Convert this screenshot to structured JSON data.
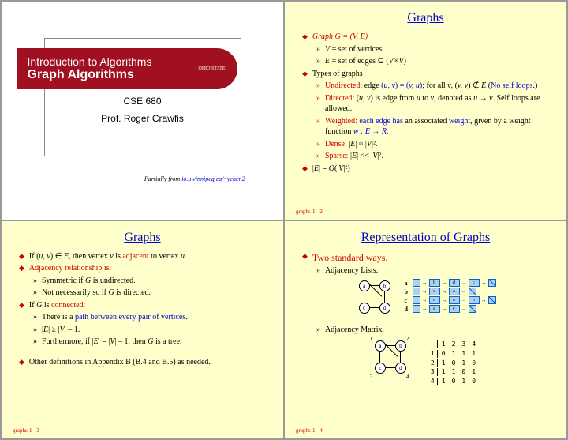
{
  "s1": {
    "banner_line1": "Introduction to Algorithms",
    "banner_line2": "Graph Algorithms",
    "logo_text": "OHIO STATE",
    "course": "CSE 680",
    "prof": "Prof. Roger Crawfis",
    "credit_prefix": "Partially from ",
    "credit_link": "io.uwinnipeg.ca/~ychen2"
  },
  "s2": {
    "title": "Graphs",
    "l1": "Graph G = (V, E)",
    "l2": "V = set of vertices",
    "l3a": "E = set of edges ",
    "l3b": "⊆ (V×V)",
    "l4": "Types of graphs",
    "l5a": "Undirected:",
    "l5b": " edge (",
    "l5c": "u, v",
    "l5d": ") = (",
    "l5e": "v, u",
    "l5f": "); for all ",
    "l5g": "v, (v, v) ∉ E",
    "l5h": " (No self loops.)",
    "l6a": "Directed:",
    "l6b": " (u, v) is edge from u to v, denoted as u → v. Self loops are allowed.",
    "l7a": "Weighted:",
    "l7b": " each edge has",
    "l7c": " an associated ",
    "l7d": "weight",
    "l7e": ", given by a weight function ",
    "l7f": "w : E → R.",
    "l8a": "Dense:",
    "l8b": " |E| ≈ |V|².",
    "l9a": "Sparse:",
    "l9b": " |E| << |V|².",
    "l10": "|E| = O(|V|²)",
    "footer": "graphs-1 - 2"
  },
  "s3": {
    "title": "Graphs",
    "l1a": "If (",
    "l1b": "u, v",
    "l1c": ") ∈ ",
    "l1d": "E",
    "l1e": ", then vertex ",
    "l1f": "v",
    "l1g": " is ",
    "l1h": "adjacent",
    "l1i": " to vertex ",
    "l1j": "u",
    "l1k": ".",
    "l2": "Adjacency relationship is:",
    "l3": "Symmetric if G is undirected.",
    "l4": "Not necessarily so if G is directed.",
    "l5a": "If ",
    "l5b": "G",
    "l5c": " is ",
    "l5d": "connected:",
    "l6": "There is a path between every pair of vertices.",
    "l7": "|E| ≥ |V| – 1.",
    "l8": "Furthermore, if |E| = |V| – 1, then G is a tree.",
    "l9": "Other definitions in Appendix B (B.4 and B.5) as needed.",
    "footer": "graphs-1 - 3"
  },
  "s4": {
    "title": "Representation of Graphs",
    "l1": "Two standard ways.",
    "l2": "Adjacency Lists.",
    "l3": "Adjacency Matrix.",
    "nodes": {
      "a": "a",
      "b": "b",
      "c": "c",
      "d": "d"
    },
    "list_rows": [
      {
        "label": "a",
        "cells": [
          "b",
          "d",
          "c"
        ]
      },
      {
        "label": "b",
        "cells": [
          "c",
          "a"
        ]
      },
      {
        "label": "c",
        "cells": [
          "d",
          "a",
          "b"
        ]
      },
      {
        "label": "d",
        "cells": [
          "a",
          "c"
        ]
      }
    ],
    "matrix_header": [
      "1",
      "2",
      "3",
      "4"
    ],
    "matrix_rows": [
      {
        "label": "1",
        "cells": [
          "0",
          "1",
          "1",
          "1"
        ]
      },
      {
        "label": "2",
        "cells": [
          "1",
          "0",
          "1",
          "0"
        ]
      },
      {
        "label": "3",
        "cells": [
          "1",
          "1",
          "0",
          "1"
        ]
      },
      {
        "label": "4",
        "cells": [
          "1",
          "0",
          "1",
          "0"
        ]
      }
    ],
    "graph_nums": {
      "n1": "1",
      "n2": "2",
      "n3": "3",
      "n4": "4"
    },
    "footer": "graphs-1 - 4"
  }
}
